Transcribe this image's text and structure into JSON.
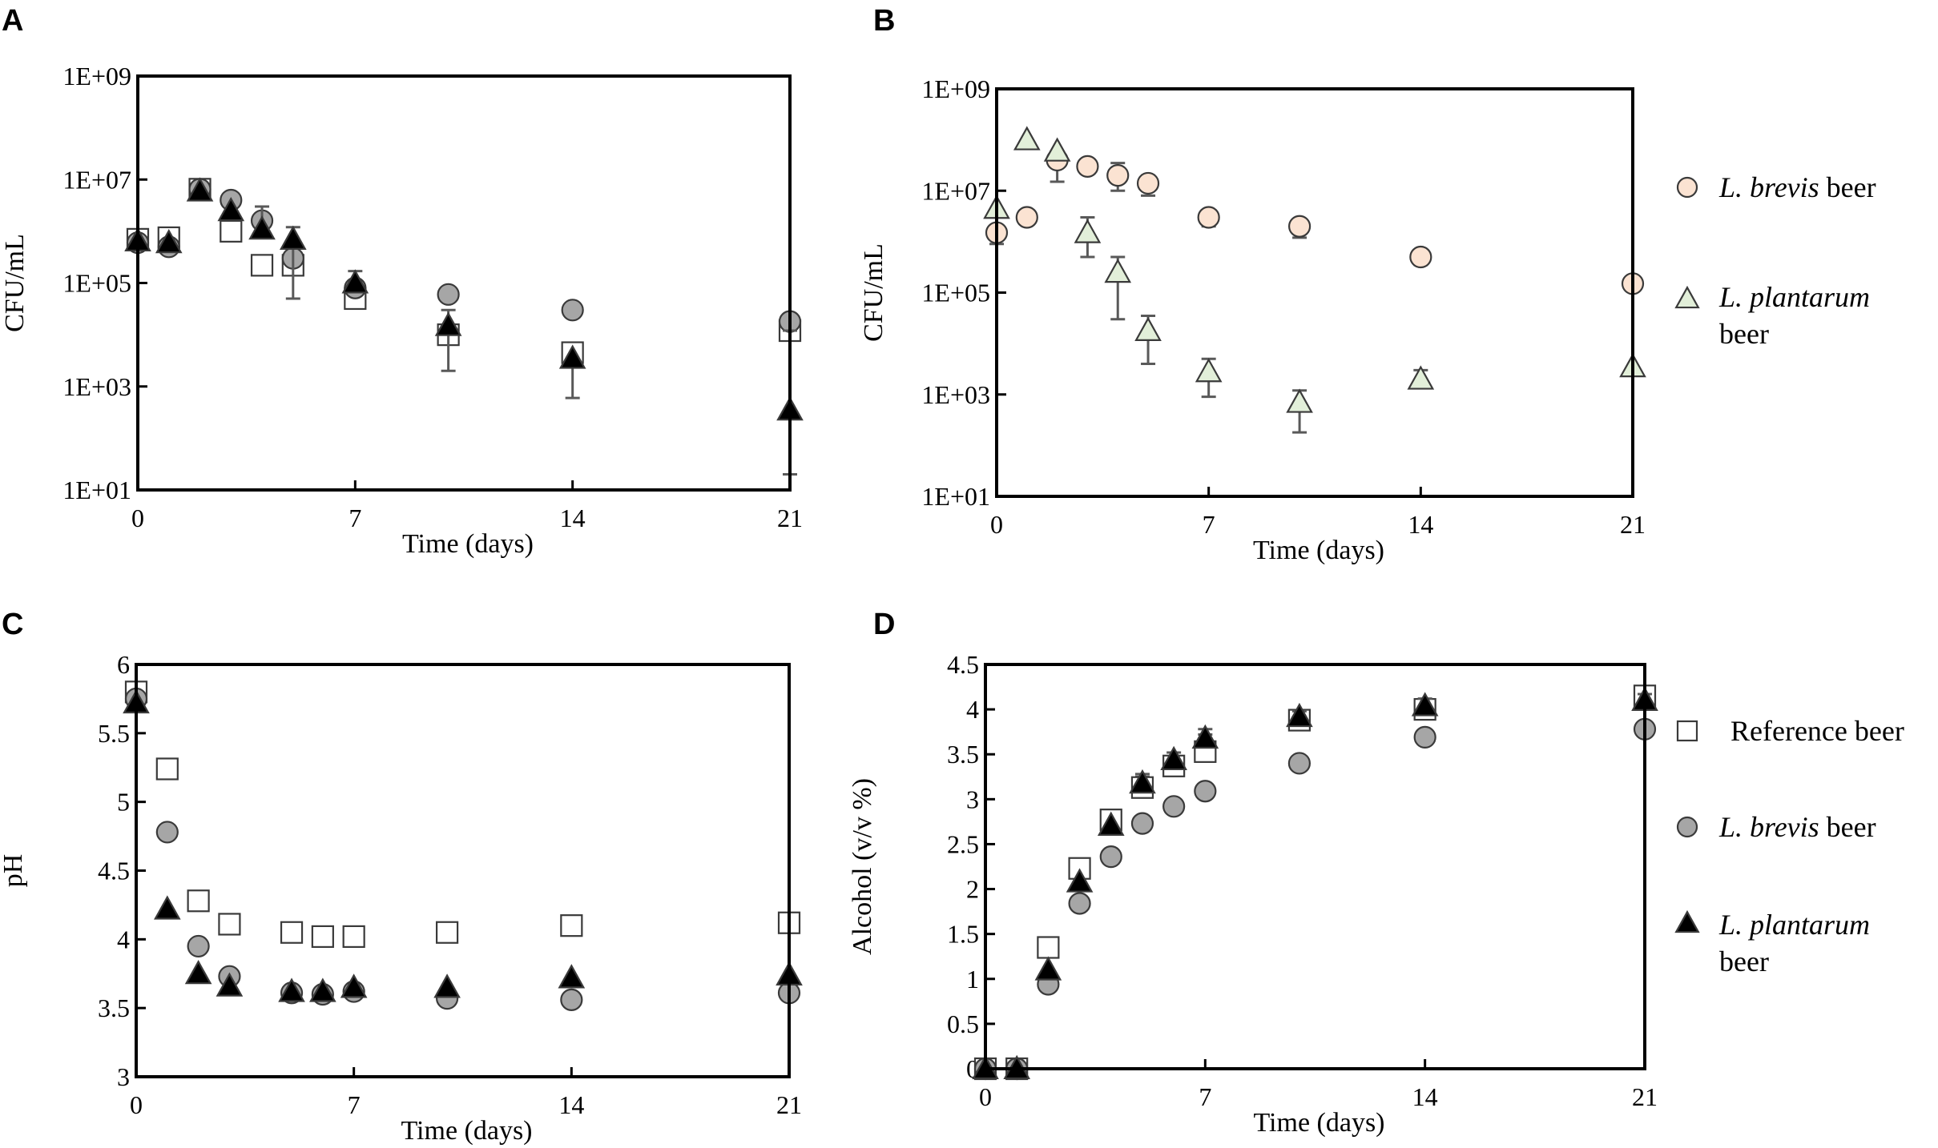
{
  "colors": {
    "reference": "#ffffff",
    "brevis_gray": "#a6a6a6",
    "plantarum_black": "#000000",
    "brevis_peach": "#fbe3d2",
    "plantarum_green": "#e2efd9",
    "errorbar": "#595959",
    "edge": "#3a3a3a"
  },
  "legend_right": [
    {
      "symbol": "circle",
      "color": "#fbe3d2",
      "italic": "L. brevis",
      "text": " beer"
    },
    {
      "symbol": "triangle",
      "color": "#e2efd9",
      "italic": "L. plantarum",
      "text": "beer"
    }
  ],
  "legend_bottom": [
    {
      "symbol": "square",
      "color": "#ffffff",
      "italic": "",
      "text": "Reference beer"
    },
    {
      "symbol": "circle",
      "color": "#a6a6a6",
      "italic": "L. brevis",
      "text": " beer"
    },
    {
      "symbol": "triangle",
      "color": "#000000",
      "italic": "L. plantarum",
      "text": "beer"
    }
  ],
  "chart_data": [
    {
      "panel": "A",
      "type": "scatter",
      "xlabel": "Time (days)",
      "ylabel": "CFU/mL",
      "yscale": "log",
      "xlim": [
        0,
        21
      ],
      "ylim": [
        10,
        1000000000
      ],
      "xticks": [
        0,
        7,
        14,
        21
      ],
      "xticklabels": [
        "0",
        "7",
        "14",
        "21"
      ],
      "yticks": [
        10,
        1000,
        100000,
        10000000,
        1000000000
      ],
      "yticklabels": [
        "1E+01",
        "1E+03",
        "1E+05",
        "1E+07",
        "1E+09"
      ],
      "series": [
        {
          "name": "Reference beer",
          "marker": "square",
          "color": "#ffffff",
          "x": [
            0,
            1,
            2,
            3,
            4,
            5,
            7,
            10,
            14,
            21
          ],
          "y": [
            700000,
            750000,
            6500000,
            1000000,
            220000,
            220000,
            50000,
            10000,
            4500,
            12000
          ],
          "err_hi": [
            null,
            null,
            null,
            null,
            null,
            null,
            null,
            null,
            null,
            25000
          ],
          "err_lo": [
            null,
            null,
            null,
            null,
            null,
            null,
            null,
            null,
            null,
            null
          ]
        },
        {
          "name": "L. brevis beer",
          "marker": "circle",
          "color": "#a6a6a6",
          "x": [
            0,
            1,
            2,
            3,
            4,
            5,
            7,
            10,
            14,
            21
          ],
          "y": [
            600000,
            500000,
            6500000,
            4000000,
            1600000,
            300000,
            80000,
            60000,
            30000,
            18000
          ],
          "err_hi": [
            null,
            null,
            null,
            null,
            null,
            null,
            null,
            null,
            null,
            null
          ],
          "err_lo": [
            null,
            null,
            null,
            null,
            null,
            null,
            null,
            null,
            null,
            null
          ]
        },
        {
          "name": "L. plantarum beer",
          "marker": "triangle",
          "color": "#000000",
          "x": [
            0,
            1,
            2,
            3,
            4,
            5,
            7,
            10,
            14,
            21
          ],
          "y": [
            650000,
            600000,
            6000000,
            2500000,
            1100000,
            700000,
            100000,
            15000,
            3500,
            350
          ],
          "err_hi": [
            null,
            null,
            null,
            null,
            3000000,
            1200000,
            170000,
            30000,
            null,
            12000
          ],
          "err_lo": [
            null,
            null,
            null,
            null,
            null,
            50000,
            null,
            2000,
            600,
            20
          ]
        }
      ]
    },
    {
      "panel": "B",
      "type": "scatter",
      "xlabel": "Time (days)",
      "ylabel": "CFU/mL",
      "yscale": "log",
      "xlim": [
        0,
        21
      ],
      "ylim": [
        10,
        1000000000
      ],
      "xticks": [
        0,
        7,
        14,
        21
      ],
      "xticklabels": [
        "0",
        "7",
        "14",
        "21"
      ],
      "yticks": [
        10,
        1000,
        100000,
        10000000,
        1000000000
      ],
      "yticklabels": [
        "1E+01",
        "1E+03",
        "1E+05",
        "1E+07",
        "1E+09"
      ],
      "series": [
        {
          "name": "L. brevis beer",
          "marker": "circle",
          "color": "#fbe3d2",
          "x": [
            0,
            1,
            2,
            3,
            4,
            5,
            7,
            10,
            14,
            21
          ],
          "y": [
            1500000,
            3000000,
            40000000,
            30000000,
            20000000,
            14000000,
            3000000,
            2000000,
            500000,
            150000
          ],
          "err_hi": [
            null,
            null,
            null,
            42000000,
            35000000,
            20000000,
            null,
            null,
            null,
            null
          ],
          "err_lo": [
            900000,
            null,
            15000000,
            null,
            10000000,
            8000000,
            2000000,
            1200000,
            350000,
            null
          ]
        },
        {
          "name": "L. plantarum beer",
          "marker": "triangle",
          "color": "#e2efd9",
          "x": [
            0,
            1,
            2,
            3,
            4,
            5,
            7,
            10,
            14,
            21
          ],
          "y": [
            4500000,
            100000000,
            60000000,
            1500000,
            250000,
            18000,
            2800,
            700,
            2000,
            3500
          ],
          "err_hi": [
            null,
            null,
            null,
            3000000,
            500000,
            35000,
            5000,
            1200,
            3000,
            null
          ],
          "err_lo": [
            null,
            null,
            null,
            500000,
            30000,
            4000,
            900,
            180,
            null,
            null
          ]
        }
      ]
    },
    {
      "panel": "C",
      "type": "scatter",
      "xlabel": "Time (days)",
      "ylabel": "pH",
      "yscale": "linear",
      "xlim": [
        0,
        21
      ],
      "ylim": [
        3,
        6
      ],
      "xticks": [
        0,
        7,
        14,
        21
      ],
      "xticklabels": [
        "0",
        "7",
        "14",
        "21"
      ],
      "yticks": [
        3,
        3.5,
        4,
        4.5,
        5,
        5.5,
        6
      ],
      "yticklabels": [
        "3",
        "3.5",
        "4",
        "4.5",
        "5",
        "5.5",
        "6"
      ],
      "series": [
        {
          "name": "Reference beer",
          "marker": "square",
          "color": "#ffffff",
          "x": [
            0,
            1,
            2,
            3,
            5,
            6,
            7,
            10,
            14,
            21
          ],
          "y": [
            5.8,
            5.24,
            4.28,
            4.11,
            4.05,
            4.02,
            4.02,
            4.05,
            4.1,
            4.12
          ]
        },
        {
          "name": "L. brevis beer",
          "marker": "circle",
          "color": "#a6a6a6",
          "x": [
            0,
            1,
            2,
            3,
            5,
            6,
            7,
            10,
            14,
            21
          ],
          "y": [
            5.75,
            4.78,
            3.95,
            3.73,
            3.61,
            3.6,
            3.62,
            3.57,
            3.56,
            3.61
          ]
        },
        {
          "name": "L. plantarum beer",
          "marker": "triangle",
          "color": "#000000",
          "x": [
            0,
            1,
            2,
            3,
            5,
            6,
            7,
            10,
            14,
            21
          ],
          "y": [
            5.72,
            4.22,
            3.75,
            3.66,
            3.62,
            3.62,
            3.65,
            3.65,
            3.72,
            3.74
          ]
        }
      ]
    },
    {
      "panel": "D",
      "type": "scatter",
      "xlabel": "Time (days)",
      "ylabel": "Alcohol (v/v %)",
      "yscale": "linear",
      "xlim": [
        0,
        21
      ],
      "ylim": [
        0,
        4.5
      ],
      "xticks": [
        0,
        7,
        14,
        21
      ],
      "xticklabels": [
        "0",
        "7",
        "14",
        "21"
      ],
      "yticks": [
        0,
        0.5,
        1,
        1.5,
        2,
        2.5,
        3,
        3.5,
        4,
        4.5
      ],
      "yticklabels": [
        "0",
        "0.5",
        "1",
        "1.5",
        "2",
        "2.5",
        "3",
        "3.5",
        "4",
        "4.5"
      ],
      "series": [
        {
          "name": "Reference beer",
          "marker": "square",
          "color": "#ffffff",
          "x": [
            0,
            1,
            2,
            3,
            4,
            5,
            6,
            7,
            10,
            14,
            21
          ],
          "y": [
            0,
            0,
            1.35,
            2.23,
            2.77,
            3.13,
            3.37,
            3.53,
            3.88,
            4.0,
            4.15
          ],
          "err_hi": [
            null,
            null,
            null,
            null,
            null,
            3.25,
            3.47,
            3.72,
            null,
            4.08,
            null
          ]
        },
        {
          "name": "L. brevis beer",
          "marker": "circle",
          "color": "#a6a6a6",
          "x": [
            0,
            1,
            2,
            3,
            4,
            5,
            6,
            7,
            10,
            14,
            21
          ],
          "y": [
            0,
            0,
            0.94,
            1.84,
            2.36,
            2.73,
            2.92,
            3.09,
            3.4,
            3.69,
            3.78
          ],
          "err_hi": [
            null,
            null,
            null,
            null,
            null,
            null,
            null,
            null,
            null,
            null,
            null
          ]
        },
        {
          "name": "L. plantarum beer",
          "marker": "triangle",
          "color": "#000000",
          "x": [
            0,
            1,
            2,
            3,
            4,
            5,
            6,
            7,
            10,
            14,
            21
          ],
          "y": [
            0,
            0,
            1.1,
            2.08,
            2.71,
            3.18,
            3.44,
            3.68,
            3.92,
            4.04,
            4.1
          ],
          "err_hi": [
            null,
            null,
            null,
            null,
            null,
            3.28,
            3.52,
            3.78,
            3.98,
            4.12,
            4.17
          ]
        }
      ]
    }
  ]
}
